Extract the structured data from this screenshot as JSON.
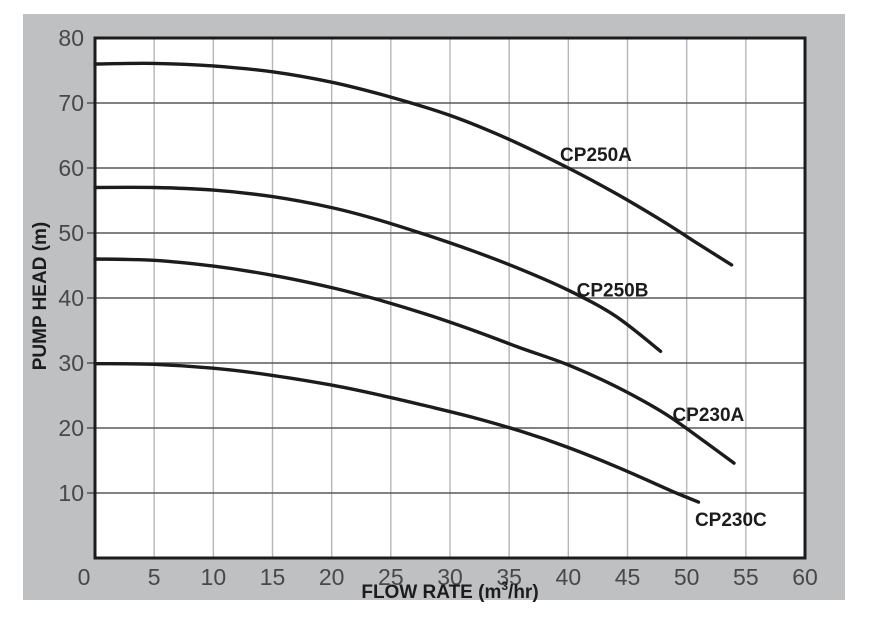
{
  "colors": {
    "page_background": "#ffffff",
    "panel_background": "#bec0c2",
    "plot_background": "#ffffff",
    "plot_border": "#1c1c1e",
    "curve": "#1c1c1e",
    "horizontal_grid": "#58595b",
    "vertical_grid": "#b4b6b8",
    "tick_text": "#47484a",
    "label_text": "#1c1c1e"
  },
  "chart_data": {
    "type": "line",
    "title": "",
    "xlabel_plain": "FLOW RATE (m³/hr)",
    "xlabel_parts": {
      "prefix": "FLOW RATE (m",
      "sup": "3",
      "suffix": "/hr)"
    },
    "ylabel": "PUMP HEAD (m)",
    "xlim": [
      0,
      60
    ],
    "ylim": [
      0,
      80
    ],
    "x_tick_step": 5,
    "y_tick_step": 10,
    "origin_label": "0",
    "x_ticks": [
      5,
      10,
      15,
      20,
      25,
      30,
      35,
      40,
      45,
      50,
      55,
      60
    ],
    "y_ticks": [
      10,
      20,
      30,
      40,
      50,
      60,
      70,
      80
    ],
    "grid": {
      "vertical_lines_every": 5,
      "horizontal_lines_every": 10,
      "grid_on": true
    },
    "legend": "inline labels next to curves",
    "series": [
      {
        "name": "CP250A",
        "label": "CP250A",
        "label_pos": [
          39.3,
          61.1
        ],
        "points": [
          [
            0,
            76
          ],
          [
            5,
            76.1
          ],
          [
            10,
            75.7
          ],
          [
            15,
            74.8
          ],
          [
            20,
            73.2
          ],
          [
            25,
            70.9
          ],
          [
            30,
            68.1
          ],
          [
            35,
            64.4
          ],
          [
            40,
            60
          ],
          [
            44,
            56.1
          ],
          [
            48,
            51.8
          ],
          [
            51,
            48.3
          ],
          [
            53.8,
            45.1
          ]
        ]
      },
      {
        "name": "CP250B",
        "label": "CP250B",
        "label_pos": [
          40.7,
          40.2
        ],
        "points": [
          [
            0,
            57
          ],
          [
            5,
            57
          ],
          [
            10,
            56.6
          ],
          [
            15,
            55.6
          ],
          [
            20,
            53.9
          ],
          [
            24,
            52
          ],
          [
            28,
            49.7
          ],
          [
            32,
            47.2
          ],
          [
            36,
            44.4
          ],
          [
            40,
            41.2
          ],
          [
            44,
            37.2
          ],
          [
            47.8,
            31.8
          ]
        ]
      },
      {
        "name": "CP230A",
        "label": "CP230A",
        "label_pos": [
          48.8,
          21.1
        ],
        "points": [
          [
            0,
            46
          ],
          [
            5,
            45.8
          ],
          [
            10,
            44.9
          ],
          [
            15,
            43.5
          ],
          [
            20,
            41.6
          ],
          [
            24,
            39.7
          ],
          [
            28,
            37.5
          ],
          [
            32,
            35
          ],
          [
            36,
            32.3
          ],
          [
            40,
            29.7
          ],
          [
            44,
            26.4
          ],
          [
            48,
            22.4
          ],
          [
            51,
            18.6
          ],
          [
            54,
            14.6
          ]
        ]
      },
      {
        "name": "CP230C",
        "label": "CP230C",
        "label_pos": [
          50.7,
          4.9
        ],
        "points": [
          [
            0,
            29.9
          ],
          [
            5,
            29.8
          ],
          [
            10,
            29.2
          ],
          [
            15,
            28.1
          ],
          [
            20,
            26.6
          ],
          [
            24,
            25.1
          ],
          [
            28,
            23.4
          ],
          [
            32,
            21.6
          ],
          [
            36,
            19.5
          ],
          [
            40,
            17
          ],
          [
            44,
            14.1
          ],
          [
            47,
            11.7
          ],
          [
            49,
            10.1
          ],
          [
            51,
            8.6
          ]
        ]
      }
    ]
  }
}
